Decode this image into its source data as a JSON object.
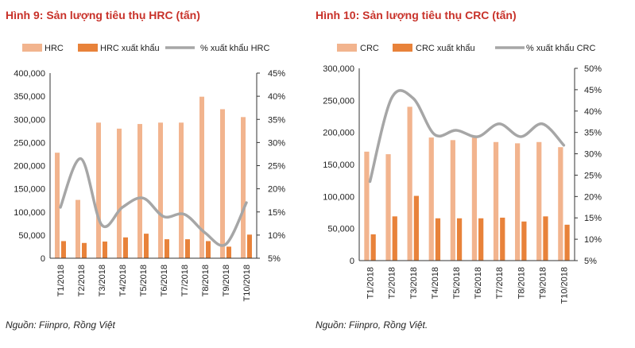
{
  "charts": [
    {
      "title": "Hình 9: Sản lượng tiêu thụ HRC (tấn)",
      "source": "Nguồn: Fiinpro, Rồng Việt",
      "chart_data": {
        "type": "bar",
        "categories": [
          "T1/2018",
          "T2/2018",
          "T3/2018",
          "T4/2018",
          "T5/2018",
          "T6/2018",
          "T7/2018",
          "T8/2018",
          "T9/2018",
          "T10/2018"
        ],
        "series": [
          {
            "name": "HRC",
            "kind": "bar",
            "axis": "left",
            "color": "#f2b48e",
            "values": [
              228000,
              126000,
              293000,
              280000,
              290000,
              293000,
              293000,
              349000,
              322000,
              305000
            ]
          },
          {
            "name": "HRC xuất khẩu",
            "kind": "bar",
            "axis": "left",
            "color": "#e8823a",
            "values": [
              37000,
              33000,
              36000,
              45000,
              53000,
              41000,
              41000,
              37000,
              25000,
              51000
            ]
          },
          {
            "name": "% xuất khẩu HRC",
            "kind": "line",
            "axis": "right",
            "color": "#a6a6a6",
            "values": [
              16,
              26.5,
              12.2,
              16,
              18,
              14,
              14.5,
              10.5,
              8,
              17
            ]
          }
        ],
        "y_left": {
          "min": 0,
          "max": 400000,
          "ticks": [
            "0",
            "50,000",
            "100,000",
            "150,000",
            "200,000",
            "250,000",
            "300,000",
            "350,000",
            "400,000"
          ]
        },
        "y_right": {
          "min": 5,
          "max": 45,
          "ticks": [
            "5%",
            "10%",
            "15%",
            "20%",
            "25%",
            "30%",
            "35%",
            "40%",
            "45%"
          ]
        }
      }
    },
    {
      "title": "Hình 10: Sản lượng tiêu thụ CRC (tấn)",
      "source": "Nguồn: Fiinpro, Rồng Việt.",
      "chart_data": {
        "type": "bar",
        "categories": [
          "T1/2018",
          "T2/2018",
          "T3/2018",
          "T4/2018",
          "T5/2018",
          "T6/2018",
          "T7/2018",
          "T8/2018",
          "T9/2018",
          "T10/2018"
        ],
        "series": [
          {
            "name": "CRC",
            "kind": "bar",
            "axis": "left",
            "color": "#f2b48e",
            "values": [
              170000,
              166000,
              240000,
              192000,
              188000,
              192000,
              185000,
              183000,
              185000,
              177000
            ]
          },
          {
            "name": "CRC xuất khẩu",
            "kind": "bar",
            "axis": "left",
            "color": "#e8823a",
            "values": [
              41000,
              69000,
              101000,
              66000,
              66000,
              66000,
              67000,
              61000,
              69000,
              56000
            ]
          },
          {
            "name": "% xuất khẩu CRC",
            "kind": "line",
            "axis": "right",
            "color": "#a6a6a6",
            "values": [
              23.5,
              43,
              43,
              34.5,
              35.5,
              34,
              37,
              34,
              37,
              32
            ]
          }
        ],
        "y_left": {
          "min": 0,
          "max": 300000,
          "ticks": [
            "0",
            "50,000",
            "100,000",
            "150,000",
            "200,000",
            "250,000",
            "300,000"
          ]
        },
        "y_right": {
          "min": 5,
          "max": 50,
          "ticks": [
            "5%",
            "10%",
            "15%",
            "20%",
            "25%",
            "30%",
            "35%",
            "40%",
            "45%",
            "50%"
          ]
        }
      }
    }
  ]
}
